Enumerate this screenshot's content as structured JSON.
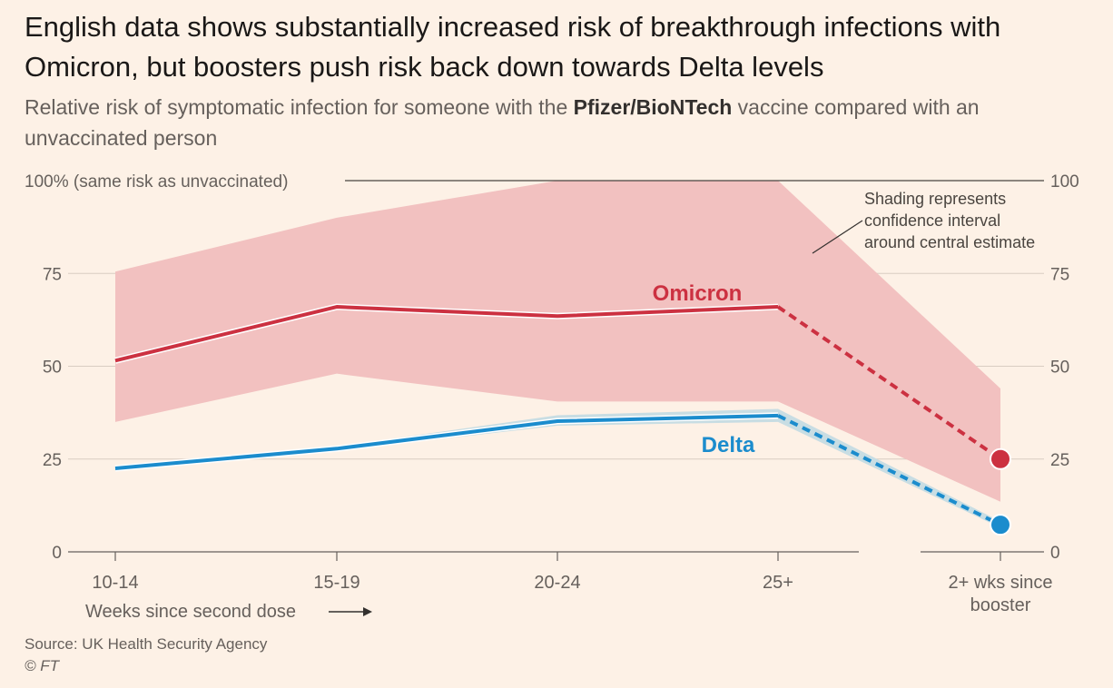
{
  "header": {
    "title": "English data shows substantially increased risk of breakthrough infections with Omicron, but boosters push risk back down towards Delta levels",
    "subtitle_before": "Relative risk of symptomatic infection for someone with the ",
    "subtitle_bold": "Pfizer/BioNTech",
    "subtitle_after": " vaccine compared with an unvaccinated person"
  },
  "footer": {
    "source": "Source: UK Health Security Agency",
    "copyright": "© FT"
  },
  "colors": {
    "background": "#fdf1e6",
    "omicron": "#cc3141",
    "omicron_ci": "#f2c1c0",
    "delta": "#1b8ccd",
    "delta_ci": "#c8dde3",
    "grid": "#d9cdc2",
    "axis": "#66605c"
  },
  "chart_data": {
    "type": "line",
    "title": "",
    "categories": [
      "10-14",
      "15-19",
      "20-24",
      "25+",
      "2+ wks since booster"
    ],
    "xlabel": "Weeks since second dose",
    "ylabel": "",
    "ylim": [
      0,
      100
    ],
    "yticks": [
      0,
      25,
      50,
      75,
      100
    ],
    "y_top_label": "100% (same risk as unvaccinated)",
    "grid": true,
    "series": [
      {
        "name": "Omicron",
        "values": [
          51.5,
          66,
          63.5,
          66,
          25
        ],
        "ci_lower": [
          35,
          48,
          40.5,
          40.5,
          13.5
        ],
        "ci_upper": [
          75.5,
          90,
          100,
          100,
          44
        ],
        "dashed_from_index": 3
      },
      {
        "name": "Delta",
        "values": [
          22.5,
          27.8,
          35.2,
          36.7,
          7.3
        ],
        "ci_lower": [
          21.8,
          27.2,
          34,
          35,
          6.5
        ],
        "ci_upper": [
          23.2,
          28.4,
          36.8,
          38.5,
          8.2
        ],
        "dashed_from_index": 3
      }
    ],
    "annotations": {
      "ci_note": [
        "Shading represents",
        "confidence interval",
        "around central estimate"
      ]
    }
  }
}
